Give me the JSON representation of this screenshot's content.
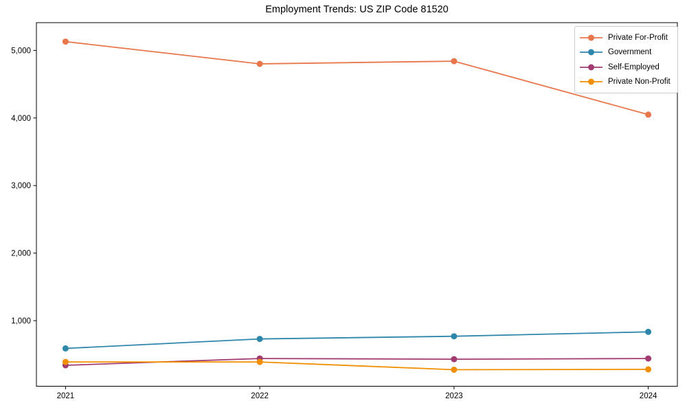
{
  "chart_data": {
    "type": "line",
    "title": "Employment Trends: US ZIP Code 81520",
    "x": [
      2021,
      2022,
      2023,
      2024
    ],
    "xtick_labels": [
      "2021",
      "2022",
      "2023",
      "2024"
    ],
    "series": [
      {
        "name": "Private For-Profit",
        "color": "#e8764b",
        "values": [
          5130,
          4800,
          4840,
          4050
        ]
      },
      {
        "name": "Government",
        "color": "#2e86ab",
        "values": [
          590,
          730,
          770,
          835
        ]
      },
      {
        "name": "Self-Employed",
        "color": "#a23b72",
        "values": [
          340,
          440,
          430,
          440
        ]
      },
      {
        "name": "Private Non-Profit",
        "color": "#f18f01",
        "values": [
          390,
          390,
          275,
          280
        ]
      }
    ],
    "yticks": [
      1000,
      2000,
      3000,
      4000,
      5000
    ],
    "ytick_labels": [
      "1,000",
      "2,000",
      "3,000",
      "4,000",
      "5,000"
    ],
    "ylim": [
      30,
      5410
    ],
    "xlim": [
      2020.85,
      2024.15
    ],
    "grid": false,
    "legend_position": "upper right",
    "frame_color": "#000000",
    "legend_border_color": "#cccccc",
    "marker": "circle",
    "marker_radius": 4.5,
    "line_width": 1.8
  }
}
